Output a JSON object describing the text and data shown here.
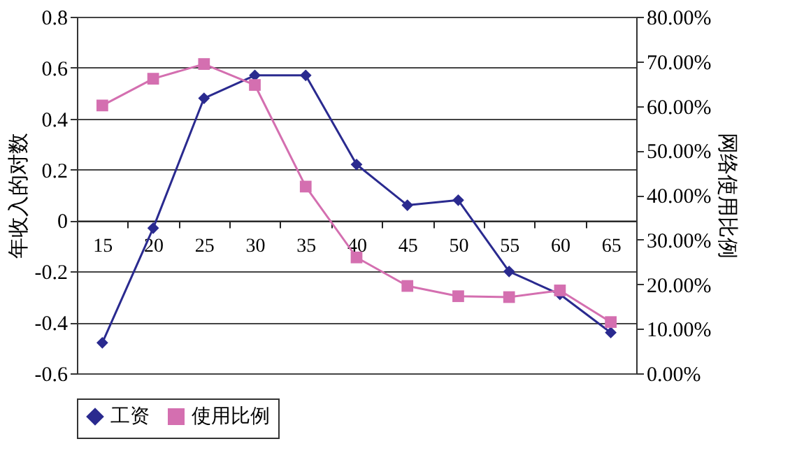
{
  "chart_data": {
    "type": "line",
    "ylabel": "年收入的对数",
    "y2label": "网络使用比例",
    "categories": [
      "15",
      "20",
      "25",
      "30",
      "35",
      "40",
      "45",
      "50",
      "55",
      "60",
      "65"
    ],
    "series": [
      {
        "name": "工资",
        "color": "#2a2a8f",
        "marker": "diamond",
        "values": [
          -0.48,
          -0.03,
          0.48,
          0.57,
          0.57,
          0.22,
          0.06,
          0.08,
          -0.2,
          -0.29,
          -0.44
        ]
      },
      {
        "name": "使用比例",
        "color": "#d46fb0",
        "marker": "square",
        "axis": "y2",
        "values": [
          60.1,
          66.1,
          69.4,
          64.7,
          41.9,
          26.0,
          19.6,
          17.3,
          17.1,
          18.6,
          11.5
        ]
      }
    ],
    "ylim": [
      -0.6,
      0.8
    ],
    "yticks": [
      -0.6,
      -0.4,
      -0.2,
      0,
      0.2,
      0.4,
      0.6,
      0.8
    ],
    "y2lim": [
      0,
      80
    ],
    "y2ticks": [
      {
        "value": 0,
        "label": "0.00%"
      },
      {
        "value": 10,
        "label": "10.00%"
      },
      {
        "value": 20,
        "label": "20.00%"
      },
      {
        "value": 30,
        "label": "30.00%"
      },
      {
        "value": 40,
        "label": "40.00%"
      },
      {
        "value": 50,
        "label": "50.00%"
      },
      {
        "value": 60,
        "label": "60.00%"
      },
      {
        "value": 70,
        "label": "70.00%"
      },
      {
        "value": 80,
        "label": "80.00%"
      }
    ],
    "grid": "y",
    "legend": "bottom",
    "line_style": "solid"
  }
}
